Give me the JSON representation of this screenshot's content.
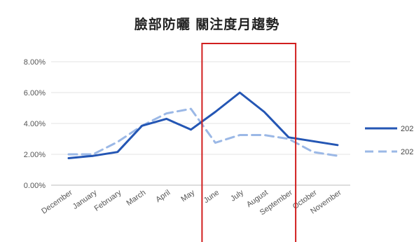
{
  "chart_data": {
    "type": "line",
    "title": "臉部防曬 關注度月趨勢",
    "categories": [
      "December",
      "January",
      "February",
      "March",
      "April",
      "May",
      "June",
      "July",
      "August",
      "September",
      "October",
      "November"
    ],
    "ylim": [
      0,
      8
    ],
    "yticks": [
      "0.00%",
      "2.00%",
      "4.00%",
      "6.00%",
      "8.00%"
    ],
    "grid": true,
    "legend_position": "right",
    "series": [
      {
        "name": "202",
        "style": "solid",
        "color": "#2456b4",
        "values": [
          1.75,
          1.9,
          2.15,
          3.85,
          4.3,
          3.6,
          4.75,
          6.0,
          4.75,
          3.1,
          2.85,
          2.6
        ]
      },
      {
        "name": "202",
        "style": "dashed",
        "color": "#9bb8e6",
        "values": [
          2.0,
          2.0,
          2.8,
          3.85,
          4.65,
          4.95,
          2.75,
          3.25,
          3.25,
          3.0,
          2.15,
          1.9
        ]
      }
    ],
    "highlight": {
      "from": "June",
      "to": "September",
      "color": "#d11f1f"
    }
  }
}
